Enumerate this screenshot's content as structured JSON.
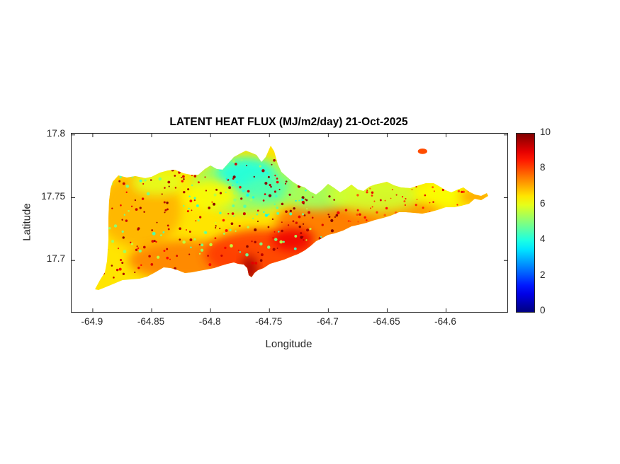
{
  "figure": {
    "background": "#ffffff"
  },
  "chart_data": {
    "type": "heatmap",
    "title": "LATENT HEAT FLUX (MJ/m2/day) 21-Oct-2025",
    "xlabel": "Longitude",
    "ylabel": "Latitude",
    "xlim": [
      -64.918,
      -64.548
    ],
    "ylim": [
      17.659,
      17.801
    ],
    "x_ticks": [
      -64.9,
      -64.85,
      -64.8,
      -64.75,
      -64.7,
      -64.65,
      -64.6
    ],
    "y_ticks": [
      17.7,
      17.75,
      17.8
    ],
    "grid": false,
    "units": "MJ/m2/day",
    "colorbar": {
      "min": 0,
      "max": 10,
      "ticks": [
        0,
        2,
        4,
        6,
        8,
        10
      ],
      "colormap": "jet",
      "position": "right"
    },
    "base_value": 6.5,
    "regions": [
      {
        "lon": -64.86,
        "lat": 17.74,
        "rx": 0.035,
        "ry": 0.03,
        "value": 7.0
      },
      {
        "lon": -64.82,
        "lat": 17.7,
        "rx": 0.05,
        "ry": 0.016,
        "value": 7.5
      },
      {
        "lon": -64.755,
        "lat": 17.705,
        "rx": 0.05,
        "ry": 0.02,
        "value": 8.2
      },
      {
        "lon": -64.7,
        "lat": 17.73,
        "rx": 0.045,
        "ry": 0.018,
        "value": 7.6
      },
      {
        "lon": -64.645,
        "lat": 17.742,
        "rx": 0.04,
        "ry": 0.012,
        "value": 7.3
      },
      {
        "lon": -64.77,
        "lat": 17.76,
        "rx": 0.045,
        "ry": 0.022,
        "value": 5.2
      },
      {
        "lon": -64.77,
        "lat": 17.768,
        "rx": 0.025,
        "ry": 0.013,
        "value": 4.0
      },
      {
        "lon": -64.752,
        "lat": 17.757,
        "rx": 0.02,
        "ry": 0.01,
        "value": 4.5
      },
      {
        "lon": -64.71,
        "lat": 17.752,
        "rx": 0.028,
        "ry": 0.012,
        "value": 5.3
      },
      {
        "lon": -64.66,
        "lat": 17.752,
        "rx": 0.04,
        "ry": 0.013,
        "value": 5.8
      },
      {
        "lon": -64.6,
        "lat": 17.753,
        "rx": 0.028,
        "ry": 0.01,
        "value": 6.2
      },
      {
        "lon": -64.845,
        "lat": 17.762,
        "rx": 0.022,
        "ry": 0.01,
        "value": 6.0
      },
      {
        "lon": -64.8,
        "lat": 17.752,
        "rx": 0.022,
        "ry": 0.012,
        "value": 6.3
      },
      {
        "lon": -64.73,
        "lat": 17.717,
        "rx": 0.018,
        "ry": 0.009,
        "value": 8.9
      },
      {
        "lon": -64.767,
        "lat": 17.692,
        "rx": 0.007,
        "ry": 0.012,
        "value": 9.6
      },
      {
        "lon": -64.575,
        "lat": 17.751,
        "rx": 0.014,
        "ry": 0.006,
        "value": 7.2
      }
    ],
    "speckle_seed": 42,
    "speckles": [
      {
        "name": "red-speckles-west",
        "count": 130,
        "value": 9.3,
        "lon_range": [
          -64.895,
          -64.78
        ],
        "lat_range": [
          17.685,
          17.775
        ],
        "r": [
          0.9,
          2.0
        ]
      },
      {
        "name": "red-speckles-central",
        "count": 110,
        "value": 9.6,
        "lon_range": [
          -64.78,
          -64.69
        ],
        "lat_range": [
          17.695,
          17.78
        ],
        "r": [
          0.9,
          2.2
        ]
      },
      {
        "name": "orange-speckles-east",
        "count": 70,
        "value": 8.4,
        "lon_range": [
          -64.69,
          -64.575
        ],
        "lat_range": [
          17.73,
          17.765
        ],
        "r": [
          0.8,
          1.8
        ]
      },
      {
        "name": "green-speckles",
        "count": 90,
        "value": 5.0,
        "lon_range": [
          -64.89,
          -64.69
        ],
        "lat_range": [
          17.7,
          17.78
        ],
        "r": [
          1.0,
          2.4
        ]
      },
      {
        "name": "cyan-speckles",
        "count": 35,
        "value": 4.2,
        "lon_range": [
          -64.83,
          -64.71
        ],
        "lat_range": [
          17.735,
          17.785
        ],
        "r": [
          1.0,
          2.2
        ]
      }
    ],
    "islet": {
      "lon": -64.62,
      "lat": 17.787,
      "rx": 0.004,
      "ry": 0.0022,
      "value": 8.0
    }
  }
}
